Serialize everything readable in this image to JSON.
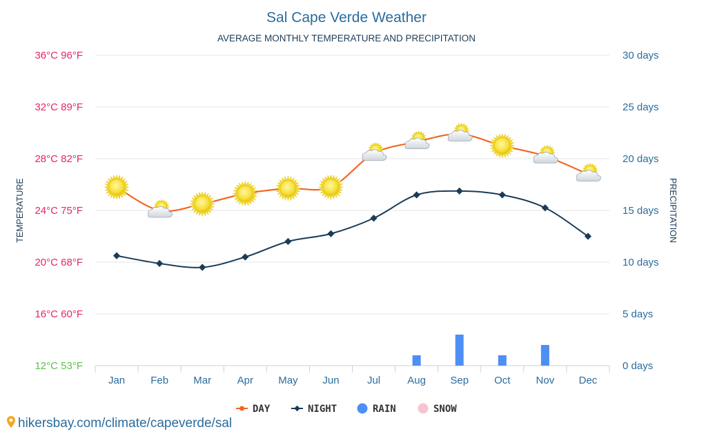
{
  "colors": {
    "day": "#f26522",
    "night": "#1b3b57",
    "rain": "#4d8ff5",
    "snow": "#f7c5d0",
    "temp_tick": "#e6246e",
    "temp_tick_min": "#5cc24a",
    "axis_blue": "#2a6c9c",
    "grid": "#e6e6e6",
    "title": "#2a6c9c",
    "url": "#2a6c9c",
    "pin": "#f5a623"
  },
  "icons": [
    "sun-icon",
    "partly-cloudy-icon",
    "location-pin-icon"
  ],
  "footer": {
    "url": "hikersbay.com/climate/capeverde/sal"
  },
  "chart_data": {
    "type": "line",
    "title": "Sal Cape Verde Weather",
    "subtitle": "AVERAGE MONTHLY TEMPERATURE AND PRECIPITATION",
    "ylabel_left": "TEMPERATURE",
    "ylabel_right": "PRECIPITATION",
    "categories": [
      "Jan",
      "Feb",
      "Mar",
      "Apr",
      "May",
      "Jun",
      "Jul",
      "Aug",
      "Sep",
      "Oct",
      "Nov",
      "Dec"
    ],
    "ylim_left": [
      12,
      36
    ],
    "ylim_right": [
      0,
      30
    ],
    "left_ticks": [
      {
        "value": 36,
        "label": "36°C 96°F"
      },
      {
        "value": 32,
        "label": "32°C 89°F"
      },
      {
        "value": 28,
        "label": "28°C 82°F"
      },
      {
        "value": 24,
        "label": "24°C 75°F"
      },
      {
        "value": 20,
        "label": "20°C 68°F"
      },
      {
        "value": 16,
        "label": "16°C 60°F"
      },
      {
        "value": 12,
        "label": "12°C 53°F"
      }
    ],
    "right_ticks": [
      {
        "value": 30,
        "label": "30 days"
      },
      {
        "value": 25,
        "label": "25 days"
      },
      {
        "value": 20,
        "label": "20 days"
      },
      {
        "value": 15,
        "label": "15 days"
      },
      {
        "value": 10,
        "label": "10 days"
      },
      {
        "value": 5,
        "label": "5 days"
      },
      {
        "value": 0,
        "label": "0 days"
      }
    ],
    "series": [
      {
        "name": "DAY",
        "axis": "left",
        "values": [
          25.8,
          24.0,
          24.5,
          25.3,
          25.7,
          25.8,
          28.4,
          29.3,
          29.9,
          29.0,
          28.2,
          26.8
        ]
      },
      {
        "name": "NIGHT",
        "axis": "left",
        "values": [
          20.5,
          19.9,
          19.6,
          20.4,
          21.6,
          22.2,
          23.4,
          25.2,
          25.5,
          25.2,
          24.2,
          22.0
        ]
      },
      {
        "name": "RAIN",
        "axis": "right",
        "type": "bar",
        "values": [
          0,
          0,
          0,
          0,
          0,
          0,
          0,
          1,
          3,
          1,
          2,
          0
        ]
      },
      {
        "name": "SNOW",
        "axis": "right",
        "type": "bar",
        "values": [
          0,
          0,
          0,
          0,
          0,
          0,
          0,
          0,
          0,
          0,
          0,
          0
        ]
      }
    ],
    "weather_icons": [
      "sun",
      "partly-cloudy",
      "sun",
      "sun",
      "sun",
      "sun",
      "partly-cloudy",
      "partly-cloudy",
      "partly-cloudy",
      "sun",
      "partly-cloudy",
      "partly-cloudy"
    ],
    "legend": [
      {
        "name": "DAY",
        "marker": "line"
      },
      {
        "name": "NIGHT",
        "marker": "line"
      },
      {
        "name": "RAIN",
        "marker": "dot"
      },
      {
        "name": "SNOW",
        "marker": "dot"
      }
    ]
  }
}
